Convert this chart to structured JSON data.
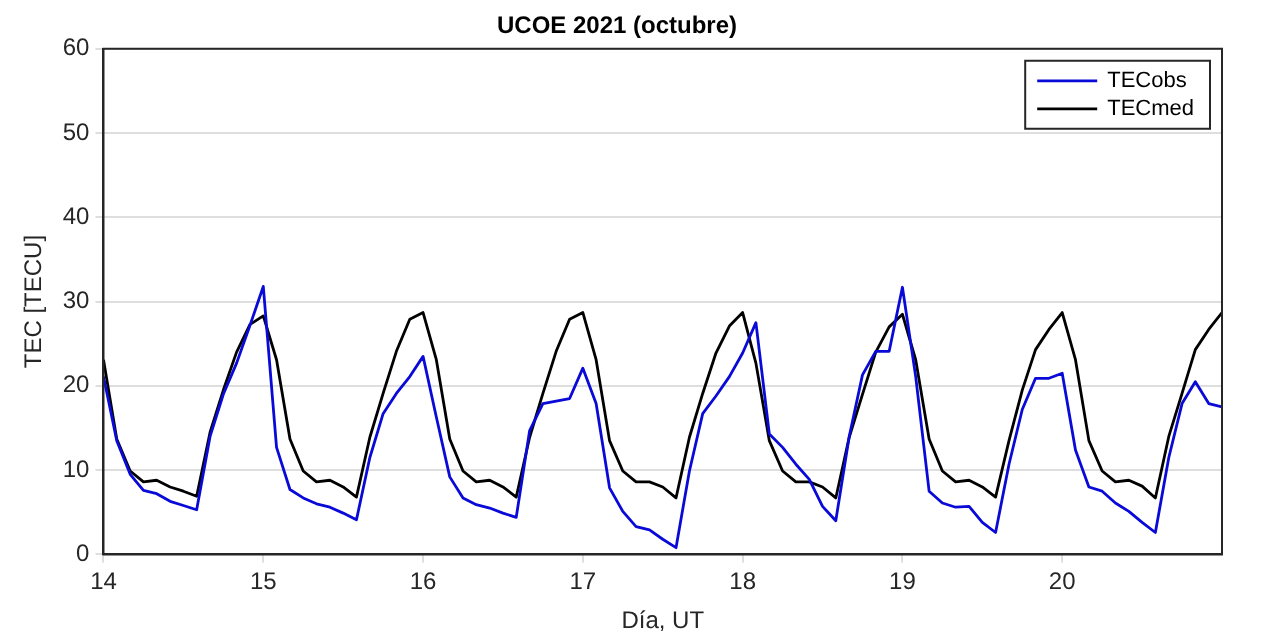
{
  "chart_data": {
    "type": "line",
    "title": "UCOE 2021 (octubre)",
    "xlabel": "Día, UT",
    "ylabel": "TEC [TECU]",
    "x": [
      14,
      14.083,
      14.167,
      14.25,
      14.333,
      14.417,
      14.5,
      14.583,
      14.667,
      14.75,
      14.833,
      14.917,
      15,
      15.083,
      15.167,
      15.25,
      15.333,
      15.417,
      15.5,
      15.583,
      15.667,
      15.75,
      15.833,
      15.917,
      16,
      16.083,
      16.167,
      16.25,
      16.333,
      16.417,
      16.5,
      16.583,
      16.667,
      16.75,
      16.833,
      16.917,
      17,
      17.083,
      17.167,
      17.25,
      17.333,
      17.417,
      17.5,
      17.583,
      17.667,
      17.75,
      17.833,
      17.917,
      18,
      18.083,
      18.167,
      18.25,
      18.333,
      18.417,
      18.5,
      18.583,
      18.667,
      18.75,
      18.833,
      18.917,
      19,
      19.083,
      19.167,
      19.25,
      19.333,
      19.417,
      19.5,
      19.583,
      19.667,
      19.75,
      19.833,
      19.917,
      20,
      20.083,
      20.167,
      20.25,
      20.333,
      20.417,
      20.5,
      20.583,
      20.667,
      20.75,
      20.833,
      20.917,
      21
    ],
    "series": [
      {
        "name": "TECobs",
        "color": "#0a0ad8",
        "values": [
          21.1,
          13.5,
          9.5,
          7.6,
          7.2,
          6.3,
          5.8,
          5.3,
          14.0,
          19.0,
          22.7,
          27.2,
          31.8,
          12.7,
          7.7,
          6.7,
          6.0,
          5.6,
          4.9,
          4.1,
          11.5,
          16.7,
          19.1,
          21.1,
          23.5,
          16.3,
          9.2,
          6.7,
          5.9,
          5.5,
          4.9,
          4.4,
          14.7,
          17.9,
          18.2,
          18.5,
          22.1,
          17.9,
          7.9,
          5.1,
          3.3,
          2.9,
          1.8,
          0.8,
          9.9,
          16.7,
          18.8,
          21.1,
          23.9,
          27.5,
          14.3,
          12.7,
          10.7,
          8.9,
          5.7,
          4.0,
          14.0,
          21.3,
          24.1,
          24.1,
          31.7,
          21.1,
          7.5,
          6.1,
          5.6,
          5.7,
          3.8,
          2.6,
          10.7,
          17.2,
          20.9,
          20.9,
          21.5,
          12.4,
          8.0,
          7.5,
          6.1,
          5.1,
          3.8,
          2.6,
          11.5,
          17.9,
          20.5,
          17.9,
          17.5
        ]
      },
      {
        "name": "TECmed",
        "color": "#000000",
        "values": [
          23.1,
          13.7,
          9.9,
          8.6,
          8.8,
          8.0,
          7.5,
          6.9,
          14.5,
          19.5,
          24.0,
          27.3,
          28.3,
          23.1,
          13.7,
          9.9,
          8.6,
          8.8,
          8.0,
          6.8,
          13.9,
          19.1,
          24.1,
          27.9,
          28.7,
          23.1,
          13.7,
          9.9,
          8.6,
          8.8,
          8.0,
          6.8,
          13.9,
          19.1,
          24.1,
          27.9,
          28.7,
          23.1,
          13.5,
          9.9,
          8.6,
          8.6,
          8.0,
          6.7,
          13.9,
          19.1,
          23.9,
          27.1,
          28.7,
          22.7,
          13.5,
          9.9,
          8.6,
          8.6,
          8.0,
          6.7,
          13.9,
          19.0,
          24.0,
          27.0,
          28.5,
          23.1,
          13.7,
          9.9,
          8.6,
          8.8,
          8.0,
          6.8,
          13.5,
          19.5,
          24.3,
          26.7,
          28.7,
          23.1,
          13.5,
          9.9,
          8.6,
          8.8,
          8.1,
          6.7,
          14.0,
          19.1,
          24.3,
          26.7,
          28.7
        ]
      }
    ],
    "xlim": [
      14,
      21
    ],
    "xticks": [
      14,
      15,
      16,
      17,
      18,
      19,
      20
    ],
    "ylim": [
      0,
      60
    ],
    "yticks": [
      0,
      10,
      20,
      30,
      40,
      50,
      60
    ],
    "grid": "y",
    "legend": "top right",
    "marker": "none",
    "line_style": "solid"
  }
}
